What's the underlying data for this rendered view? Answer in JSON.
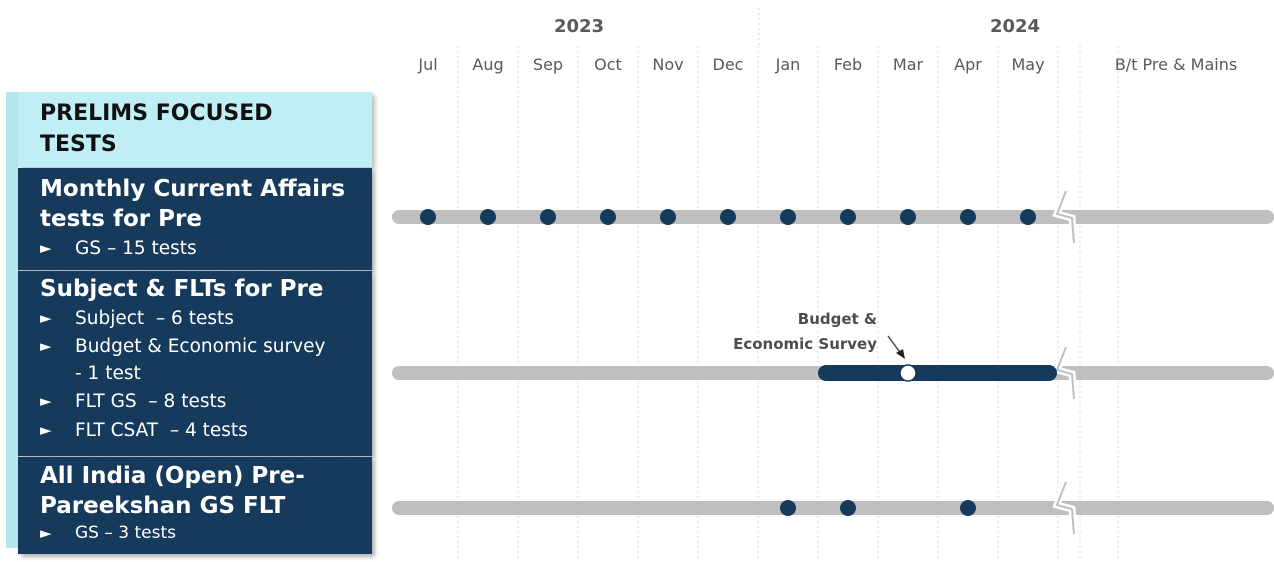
{
  "timeline": {
    "years": [
      "2023",
      "2024"
    ],
    "months": [
      "Jul",
      "Aug",
      "Sep",
      "Oct",
      "Nov",
      "Dec",
      "Jan",
      "Feb",
      "Mar",
      "Apr",
      "May",
      "B/t Pre & Mains"
    ],
    "annotation_lines": [
      "Budget &",
      "Economic Survey"
    ]
  },
  "panel": {
    "header": [
      "PRELIMS FOCUSED",
      "TESTS"
    ],
    "sections": [
      {
        "title": [
          "Monthly Current Affairs",
          "tests for Pre"
        ],
        "items": [
          "GS – 15 tests"
        ]
      },
      {
        "title": [
          "Subject & FLTs for Pre"
        ],
        "items": [
          "Subject  – 6 tests",
          "Budget & Economic survey\n- 1 test",
          "FLT GS  – 8 tests",
          "FLT CSAT  – 4 tests"
        ]
      },
      {
        "title": [
          "All India (Open) Pre-",
          "Pareekshan GS FLT"
        ],
        "items": [
          "GS – 3 tests"
        ]
      }
    ]
  },
  "tracks": [
    {
      "name": "monthly-current-affairs",
      "dots": [
        "Jul",
        "Aug",
        "Sep",
        "Oct",
        "Nov",
        "Dec",
        "Jan",
        "Feb",
        "Mar",
        "Apr",
        "May"
      ]
    },
    {
      "name": "subject-and-flts",
      "range": [
        "Feb",
        "May"
      ],
      "marker": "Mar"
    },
    {
      "name": "all-india-open",
      "dots": [
        "Jan",
        "Feb",
        "Apr"
      ]
    }
  ],
  "colors": {
    "track": "#bfbfbf",
    "navy": "#163a5c",
    "accent": "#bfeff5",
    "text": "#595959"
  },
  "icons": {
    "bullet": "triangle-right-icon",
    "break": "zigzag-break-icon",
    "arrow": "arrow-down-right-icon"
  }
}
